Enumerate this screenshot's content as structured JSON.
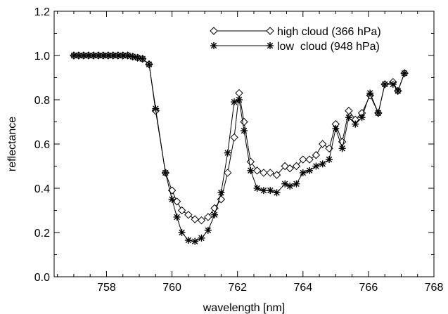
{
  "chart_data": {
    "type": "line",
    "title": "",
    "xlabel": "wavelength [nm]",
    "ylabel": "reflectance",
    "xlim": [
      756.4,
      768
    ],
    "ylim": [
      0.0,
      1.2
    ],
    "x_ticks": [
      758,
      760,
      762,
      764,
      766,
      768
    ],
    "y_ticks": [
      0.0,
      0.2,
      0.4,
      0.6,
      0.8,
      1.0,
      1.2
    ],
    "x_tick_labels": [
      "758",
      "760",
      "762",
      "764",
      "766",
      "768"
    ],
    "y_tick_labels": [
      "0.0",
      "0.2",
      "0.4",
      "0.6",
      "0.8",
      "1.0",
      "1.2"
    ],
    "grid": false,
    "legend_position": "top-right",
    "x": [
      757.0,
      757.15,
      757.3,
      757.45,
      757.6,
      757.75,
      757.9,
      758.05,
      758.2,
      758.35,
      758.5,
      758.65,
      758.8,
      758.95,
      759.1,
      759.3,
      759.5,
      759.8,
      760.0,
      760.15,
      760.3,
      760.5,
      760.7,
      760.9,
      761.1,
      761.3,
      761.5,
      761.7,
      761.9,
      762.05,
      762.2,
      762.4,
      762.6,
      762.8,
      763.0,
      763.2,
      763.45,
      763.6,
      763.8,
      764.0,
      764.2,
      764.4,
      764.6,
      764.8,
      765.0,
      765.2,
      765.4,
      765.6,
      765.8,
      766.05,
      766.3,
      766.5,
      766.75,
      766.9,
      767.1
    ],
    "series": [
      {
        "name": "high cloud (366 hPa)",
        "marker": "diamond",
        "values": [
          1.0,
          1.0,
          1.0,
          1.0,
          1.0,
          1.0,
          1.0,
          1.0,
          1.0,
          1.0,
          1.0,
          1.0,
          0.995,
          0.99,
          0.985,
          0.96,
          0.75,
          0.47,
          0.39,
          0.34,
          0.3,
          0.28,
          0.26,
          0.255,
          0.27,
          0.31,
          0.35,
          0.47,
          0.63,
          0.83,
          0.7,
          0.52,
          0.48,
          0.47,
          0.47,
          0.46,
          0.5,
          0.49,
          0.5,
          0.53,
          0.53,
          0.55,
          0.6,
          0.58,
          0.69,
          0.61,
          0.75,
          0.71,
          0.74,
          0.82,
          0.74,
          0.87,
          0.88,
          0.84,
          0.92
        ]
      },
      {
        "name": "low  cloud (948 hPa)",
        "marker": "asterisk",
        "values": [
          1.0,
          1.0,
          1.0,
          1.0,
          1.0,
          1.0,
          1.0,
          1.0,
          1.0,
          1.0,
          1.0,
          1.0,
          0.995,
          0.99,
          0.985,
          0.96,
          0.76,
          0.47,
          0.35,
          0.27,
          0.2,
          0.165,
          0.16,
          0.175,
          0.21,
          0.28,
          0.38,
          0.56,
          0.79,
          0.8,
          0.66,
          0.48,
          0.4,
          0.39,
          0.39,
          0.38,
          0.42,
          0.41,
          0.42,
          0.47,
          0.48,
          0.5,
          0.51,
          0.53,
          0.67,
          0.58,
          0.72,
          0.69,
          0.72,
          0.83,
          0.74,
          0.87,
          0.87,
          0.84,
          0.92
        ]
      }
    ]
  }
}
